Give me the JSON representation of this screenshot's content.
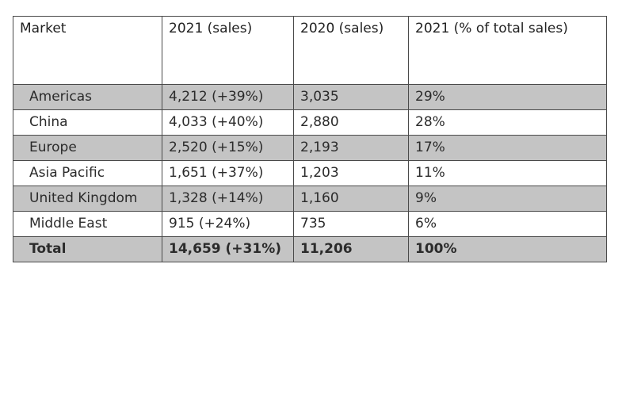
{
  "table": {
    "headers": [
      "Market",
      "2021 (sales)",
      "2020 (sales)",
      "2021 (% of total sales)"
    ],
    "rows": [
      {
        "market": "Americas",
        "sales_2021": "4,212 (+39%)",
        "sales_2020": "3,035",
        "pct_2021": "29%"
      },
      {
        "market": "China",
        "sales_2021": "4,033 (+40%)",
        "sales_2020": "2,880",
        "pct_2021": "28%"
      },
      {
        "market": "Europe",
        "sales_2021": "2,520 (+15%)",
        "sales_2020": "2,193",
        "pct_2021": "17%"
      },
      {
        "market": "Asia Pacific",
        "sales_2021": "1,651 (+37%)",
        "sales_2020": "1,203",
        "pct_2021": "11%"
      },
      {
        "market": "United Kingdom",
        "sales_2021": "1,328 (+14%)",
        "sales_2020": "1,160",
        "pct_2021": "9%"
      },
      {
        "market": "Middle East",
        "sales_2021": "915 (+24%)",
        "sales_2020": "735",
        "pct_2021": "6%"
      },
      {
        "market": "Total",
        "sales_2021": "14,659 (+31%)",
        "sales_2020": "11,206",
        "pct_2021": "100%"
      }
    ],
    "colors": {
      "shaded_row": "#c4c4c4",
      "plain_row": "#ffffff",
      "border": "#4a4a4a"
    }
  }
}
